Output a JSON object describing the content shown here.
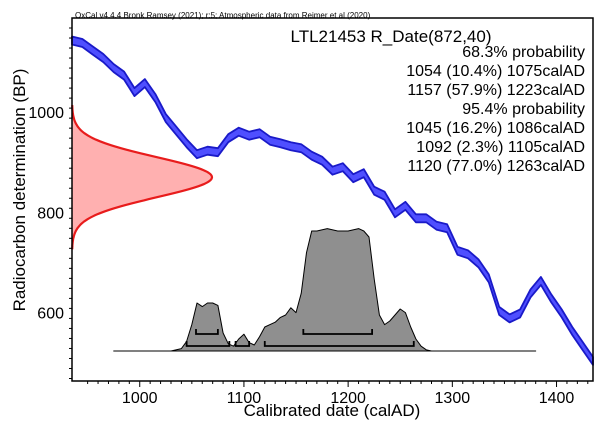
{
  "header_note": "OxCal v4.4.4 Bronk Ramsey (2021); r:5; Atmospheric data from Reimer et al (2020)",
  "chart_data": {
    "type": "area",
    "title": "LTL21453 R_Date(872,40)",
    "xlabel": "Calibrated date (calAD)",
    "ylabel": "Radiocarbon determination (BP)",
    "xlim": [
      935,
      1435
    ],
    "ylim": [
      465,
      1190
    ],
    "x_ticks": [
      1000,
      1100,
      1200,
      1300,
      1400
    ],
    "y_ticks": [
      600,
      800,
      1000
    ],
    "grid": false,
    "colors": {
      "calibration_curve": "#4f4fff",
      "calibration_curve_edge": "#1a1ac8",
      "radiocarbon_fill": "#ffb0b0",
      "radiocarbon_line": "#e81c1c",
      "posterior_fill": "#8f8f8f",
      "range_bars": "#000000"
    },
    "annotations": [
      "68.3% probability",
      "1054 (10.4%) 1075calAD",
      "1157 (57.9%) 1223calAD",
      "95.4% probability",
      "1045 (16.2%) 1086calAD",
      "1092 (2.3%) 1105calAD",
      "1120 (77.0%) 1263calAD"
    ],
    "calibration_curve": {
      "x": [
        935,
        945,
        955,
        965,
        975,
        985,
        995,
        1005,
        1015,
        1025,
        1035,
        1045,
        1055,
        1065,
        1075,
        1085,
        1095,
        1105,
        1115,
        1125,
        1135,
        1145,
        1155,
        1165,
        1175,
        1185,
        1195,
        1205,
        1215,
        1225,
        1235,
        1245,
        1255,
        1265,
        1275,
        1285,
        1295,
        1305,
        1315,
        1325,
        1335,
        1345,
        1355,
        1365,
        1375,
        1385,
        1395,
        1405,
        1415,
        1425,
        1435
      ],
      "y": [
        1145,
        1140,
        1125,
        1110,
        1090,
        1075,
        1042,
        1060,
        1030,
        990,
        965,
        940,
        918,
        925,
        922,
        950,
        963,
        955,
        960,
        945,
        940,
        934,
        930,
        915,
        905,
        885,
        892,
        870,
        880,
        845,
        835,
        800,
        815,
        790,
        790,
        775,
        770,
        725,
        718,
        700,
        670,
        605,
        590,
        600,
        640,
        665,
        630,
        600,
        565,
        535,
        505
      ],
      "error_bp": 8
    },
    "radiocarbon_date": {
      "mean_bp": 872,
      "sd": 40
    },
    "posterior": {
      "x": [
        975,
        1030,
        1040,
        1045,
        1050,
        1055,
        1060,
        1065,
        1070,
        1075,
        1080,
        1085,
        1090,
        1095,
        1100,
        1105,
        1110,
        1115,
        1120,
        1125,
        1130,
        1135,
        1140,
        1145,
        1150,
        1155,
        1160,
        1165,
        1170,
        1180,
        1190,
        1200,
        1210,
        1215,
        1220,
        1225,
        1230,
        1235,
        1240,
        1245,
        1250,
        1255,
        1260,
        1265,
        1270,
        1275,
        1280,
        1380
      ],
      "y": [
        0,
        0,
        0.02,
        0.08,
        0.22,
        0.4,
        0.37,
        0.4,
        0.4,
        0.38,
        0.15,
        0.06,
        0.04,
        0.1,
        0.14,
        0.07,
        0.05,
        0.12,
        0.2,
        0.22,
        0.24,
        0.28,
        0.3,
        0.36,
        0.32,
        0.48,
        0.82,
        1.0,
        1.0,
        1.02,
        1.0,
        1.0,
        1.02,
        1.0,
        0.95,
        0.6,
        0.3,
        0.22,
        0.25,
        0.3,
        0.35,
        0.32,
        0.2,
        0.1,
        0.04,
        0.01,
        0,
        0
      ]
    },
    "ranges_68": [
      [
        1054,
        1075
      ],
      [
        1157,
        1223
      ]
    ],
    "ranges_95": [
      [
        1045,
        1086
      ],
      [
        1092,
        1105
      ],
      [
        1120,
        1263
      ]
    ]
  }
}
